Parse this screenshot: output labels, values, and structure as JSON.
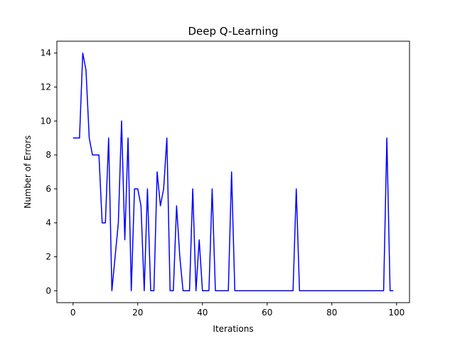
{
  "chart_data": {
    "type": "line",
    "title": "Deep Q-Learning",
    "xlabel": "Iterations",
    "ylabel": "Number of Errors",
    "xlim": [
      -5,
      104
    ],
    "ylim": [
      -0.7,
      14.7
    ],
    "xticks": [
      0,
      20,
      40,
      60,
      80,
      100
    ],
    "yticks": [
      0,
      2,
      4,
      6,
      8,
      10,
      12,
      14
    ],
    "grid": false,
    "series": [
      {
        "color": "#0000ff",
        "x": [
          0,
          1,
          2,
          3,
          4,
          5,
          6,
          7,
          8,
          9,
          10,
          11,
          12,
          13,
          14,
          15,
          16,
          17,
          18,
          19,
          20,
          21,
          22,
          23,
          24,
          25,
          26,
          27,
          28,
          29,
          30,
          31,
          32,
          33,
          34,
          35,
          36,
          37,
          38,
          39,
          40,
          41,
          42,
          43,
          44,
          45,
          46,
          47,
          48,
          49,
          50,
          51,
          52,
          53,
          54,
          55,
          56,
          57,
          58,
          59,
          60,
          61,
          62,
          63,
          64,
          65,
          66,
          67,
          68,
          69,
          70,
          71,
          72,
          73,
          74,
          75,
          76,
          77,
          78,
          79,
          80,
          81,
          82,
          83,
          84,
          85,
          86,
          87,
          88,
          89,
          90,
          91,
          92,
          93,
          94,
          95,
          96,
          97,
          98,
          99
        ],
        "y": [
          9,
          9,
          9,
          14,
          13,
          9,
          8,
          8,
          8,
          4,
          4,
          9,
          0,
          2,
          4,
          10,
          3,
          9,
          0,
          6,
          6,
          5,
          0,
          6,
          0,
          0,
          7,
          5,
          6,
          9,
          0,
          0,
          5,
          2,
          0,
          0,
          0,
          6,
          0,
          3,
          0,
          0,
          0,
          6,
          0,
          0,
          0,
          0,
          0,
          7,
          0,
          0,
          0,
          0,
          0,
          0,
          0,
          0,
          0,
          0,
          0,
          0,
          0,
          0,
          0,
          0,
          0,
          0,
          0,
          6,
          0,
          0,
          0,
          0,
          0,
          0,
          0,
          0,
          0,
          0,
          0,
          0,
          0,
          0,
          0,
          0,
          0,
          0,
          0,
          0,
          0,
          0,
          0,
          0,
          0,
          0,
          0,
          9,
          0,
          0
        ]
      }
    ]
  }
}
